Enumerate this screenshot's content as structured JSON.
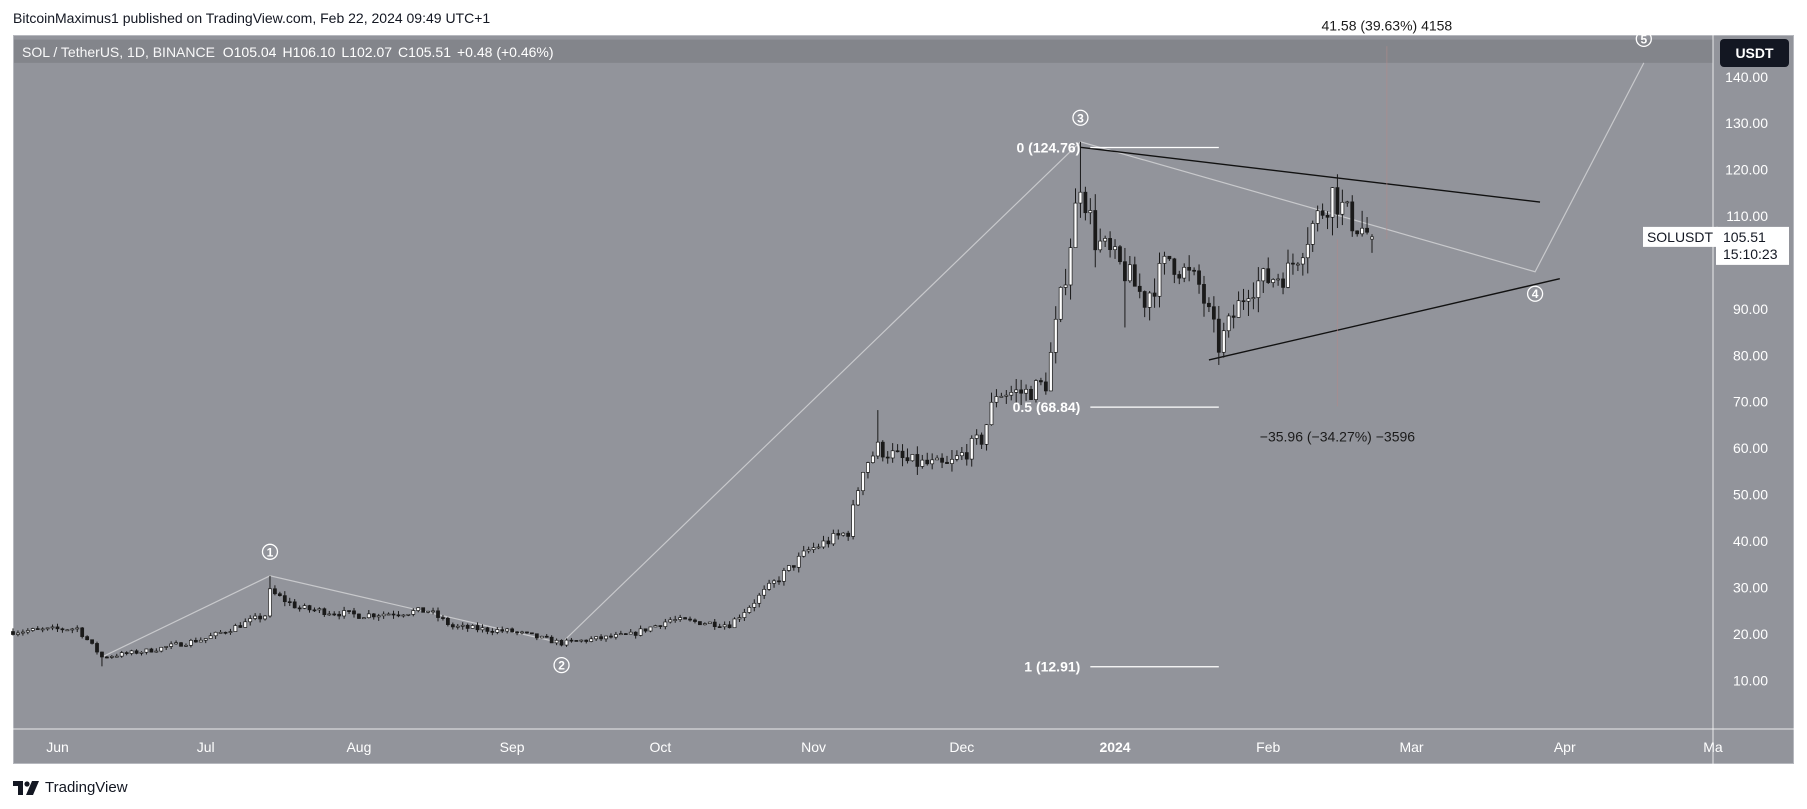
{
  "header": {
    "published": "BitcoinMaximus1 published on TradingView.com, Feb 22, 2024 09:49 UTC+1"
  },
  "symbol_bar": {
    "title": "SOL / TetherUS, 1D, BINANCE",
    "open_label": "O",
    "open": "105.04",
    "high_label": "H",
    "high": "106.10",
    "low_label": "L",
    "low": "102.07",
    "close_label": "C",
    "close": "105.51",
    "change": "+0.48 (+0.46%)"
  },
  "currency_button": "USDT",
  "footer": {
    "brand": "TradingView",
    "logo_icon": "tradingview-logo-icon"
  },
  "colors": {
    "background": "#92949b",
    "candle": "#1a1a1a",
    "resistance_band": "#83858b",
    "trendline": "#111111",
    "wave_line": "#c8c9cc",
    "text_white": "#ffffff",
    "price_tag": "#ffffff"
  },
  "chart_data": {
    "type": "candlestick",
    "symbol": "SOLUSDT",
    "interval": "1D",
    "exchange": "BINANCE",
    "y_axis": {
      "ticks": [
        10,
        20,
        30,
        40,
        50,
        60,
        70,
        80,
        90,
        100,
        110,
        120,
        130,
        140
      ],
      "tick_labels": [
        "10.00",
        "20.00",
        "30.00",
        "40.00",
        "50.00",
        "60.00",
        "70.00",
        "80.00",
        "90.00",
        "",
        "110.00",
        "120.00",
        "130.00",
        "140.00"
      ],
      "range": [
        -0.5,
        149
      ]
    },
    "x_axis": {
      "labels": [
        "Jun",
        "Jul",
        "Aug",
        "Sep",
        "Oct",
        "Nov",
        "Dec",
        "2024",
        "Feb",
        "Mar",
        "Apr",
        "Ma"
      ],
      "label_dates": [
        "2023-06-01",
        "2023-07-01",
        "2023-08-01",
        "2023-09-01",
        "2023-10-01",
        "2023-11-01",
        "2023-12-01",
        "2024-01-01",
        "2024-02-01",
        "2024-03-01",
        "2024-04-01",
        "2024-05-01"
      ],
      "range": [
        "2023-05-23",
        "2024-05-01"
      ]
    },
    "current_price": {
      "label": "SOLUSDT",
      "value": "105.51",
      "countdown": "15:10:23"
    },
    "price_anchors": [
      [
        "2023-05-23",
        20.5
      ],
      [
        "2023-06-05",
        21.2
      ],
      [
        "2023-06-10",
        15.0
      ],
      [
        "2023-06-20",
        16.5
      ],
      [
        "2023-07-01",
        19.0
      ],
      [
        "2023-07-13",
        24.0
      ],
      [
        "2023-07-14",
        29.0
      ],
      [
        "2023-07-20",
        25.5
      ],
      [
        "2023-08-01",
        24.0
      ],
      [
        "2023-08-15",
        25.0
      ],
      [
        "2023-08-20",
        21.5
      ],
      [
        "2023-09-01",
        20.5
      ],
      [
        "2023-09-11",
        18.0
      ],
      [
        "2023-09-25",
        19.8
      ],
      [
        "2023-10-03",
        23.0
      ],
      [
        "2023-10-15",
        22.0
      ],
      [
        "2023-10-20",
        27.0
      ],
      [
        "2023-10-31",
        38.0
      ],
      [
        "2023-11-08",
        42.0
      ],
      [
        "2023-11-11",
        56.0
      ],
      [
        "2023-11-14",
        60.0
      ],
      [
        "2023-11-20",
        57.0
      ],
      [
        "2023-11-28",
        56.0
      ],
      [
        "2023-12-05",
        62.0
      ],
      [
        "2023-12-08",
        72.0
      ],
      [
        "2023-12-14",
        72.0
      ],
      [
        "2023-12-18",
        74.0
      ],
      [
        "2023-12-22",
        98.0
      ],
      [
        "2023-12-25",
        118.0
      ],
      [
        "2023-12-28",
        105.0
      ],
      [
        "2024-01-03",
        98.0
      ],
      [
        "2024-01-07",
        92.0
      ],
      [
        "2024-01-12",
        101.0
      ],
      [
        "2024-01-18",
        95.0
      ],
      [
        "2024-01-22",
        82.0
      ],
      [
        "2024-01-28",
        95.0
      ],
      [
        "2024-02-05",
        98.0
      ],
      [
        "2024-02-10",
        108.0
      ],
      [
        "2024-02-14",
        115.0
      ],
      [
        "2024-02-17",
        110.0
      ],
      [
        "2024-02-22",
        105.51
      ]
    ],
    "wicks": [
      {
        "date": "2023-06-10",
        "low": 13.0
      },
      {
        "date": "2023-07-14",
        "high": 32.5
      },
      {
        "date": "2023-09-11",
        "low": 17.3
      },
      {
        "date": "2023-11-14",
        "high": 68.2
      },
      {
        "date": "2023-12-25",
        "high": 126.0
      },
      {
        "date": "2024-01-03",
        "low": 86.0
      },
      {
        "date": "2024-01-23",
        "low": 79.5
      },
      {
        "date": "2024-02-15",
        "high": 119.0
      }
    ],
    "elliott_waves": [
      {
        "label": "1",
        "date": "2023-07-14",
        "price": 32.5
      },
      {
        "label": "2",
        "date": "2023-09-11",
        "price": 18.0
      },
      {
        "label": "3",
        "date": "2023-12-25",
        "price": 126.0
      },
      {
        "label": "4",
        "date": "2024-03-26",
        "price": 98.0
      },
      {
        "label": "5",
        "date": "2024-04-17",
        "price": 143.0
      }
    ],
    "wave_path": [
      [
        "2023-06-10",
        15.0
      ],
      [
        "2023-07-14",
        32.5
      ],
      [
        "2023-09-11",
        18.0
      ],
      [
        "2023-12-25",
        126.0
      ],
      [
        "2024-03-26",
        98.0
      ],
      [
        "2024-04-17",
        143.0
      ]
    ],
    "triangle": {
      "resistance": [
        [
          "2023-12-25",
          124.8
        ],
        [
          "2024-03-27",
          113.0
        ]
      ],
      "support": [
        [
          "2024-01-20",
          79.0
        ],
        [
          "2024-03-31",
          96.5
        ]
      ]
    },
    "fibonacci": [
      {
        "label": "0 (124.76)",
        "value": 124.76
      },
      {
        "label": "0.5 (68.84)",
        "value": 68.84
      },
      {
        "label": "1 (12.91)",
        "value": 12.91
      }
    ],
    "fib_range": [
      "2023-12-27",
      "2024-01-22"
    ],
    "measures": [
      {
        "label": "41.58 (39.63%) 4158",
        "date": "2024-02-25",
        "from": 105.0,
        "to": 146.6,
        "label_price": 151.0
      },
      {
        "label": "−35.96 (−34.27%) −3596",
        "date": "2024-02-15",
        "from": 105.0,
        "to": 69.0,
        "label_price": 62.5
      }
    ],
    "resistance_zone": [
      143.0,
      148.0
    ]
  }
}
